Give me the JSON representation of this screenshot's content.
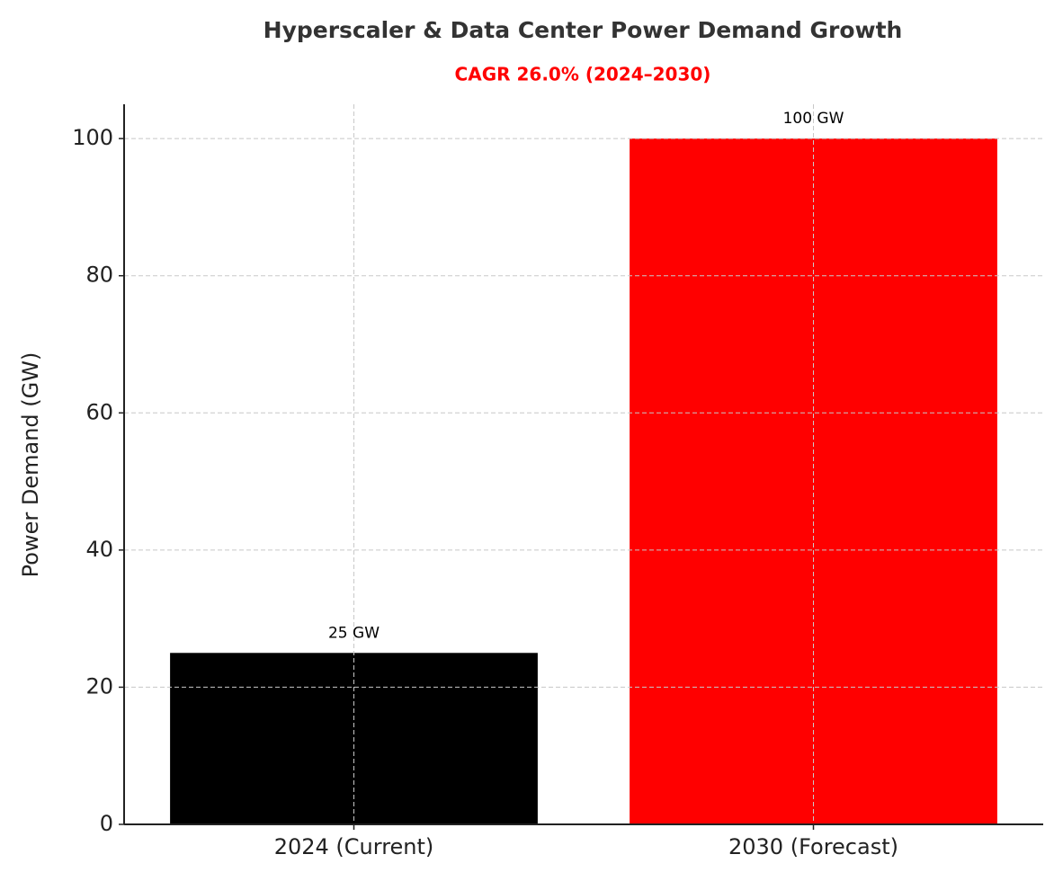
{
  "chart_data": {
    "type": "bar",
    "title": "Hyperscaler & Data Center Power Demand Growth",
    "subtitle": "CAGR 26.0% (2024–2030)",
    "y_label": "Power Demand (GW)",
    "categories": [
      "2024 (Current)",
      "2030 (Forecast)"
    ],
    "values": [
      25,
      100
    ],
    "value_labels": [
      "25 GW",
      "100 GW"
    ],
    "colors": [
      "#000000",
      "#ff0000"
    ],
    "ylim": [
      0,
      105
    ],
    "yticks": [
      0,
      20,
      40,
      60,
      80,
      100
    ],
    "grid": true
  }
}
